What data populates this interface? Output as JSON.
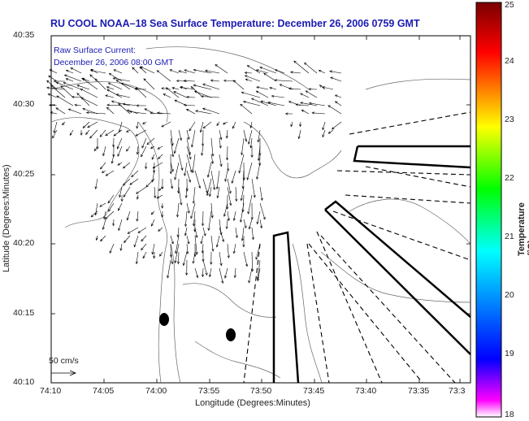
{
  "title": "RU COOL  NOAA–18  Sea Surface Temperature:  December 26, 2006 0759 GMT",
  "annotation": {
    "line1": "Raw Surface Current:",
    "line2": "December 26, 2006 08:00 GMT"
  },
  "axes": {
    "xlabel": "Longitude (Degrees:Minutes)",
    "ylabel": "Latitude (Degrees:Minutes)",
    "x_ticks": [
      "74:10",
      "74:05",
      "74:00",
      "73:55",
      "73:50",
      "73:45",
      "73:40",
      "73:35",
      "73:3"
    ],
    "y_ticks": [
      "40:35",
      "40:30",
      "40:25",
      "40:20",
      "40:15",
      "40:10"
    ]
  },
  "colorbar": {
    "label": "Temperature (°C)",
    "ticks": [
      "25",
      "24",
      "23",
      "22",
      "21",
      "20",
      "19",
      "18"
    ],
    "min": 18,
    "max": 25,
    "colormap": [
      "#ff00ff",
      "#0000ff",
      "#00ffff",
      "#00ff00",
      "#ffff00",
      "#ff0000",
      "#7a0000"
    ]
  },
  "scale_label": "50 cm/s",
  "colors": {
    "title": "#1b1bb3",
    "vectors": "#000000",
    "coast": "#555555"
  }
}
